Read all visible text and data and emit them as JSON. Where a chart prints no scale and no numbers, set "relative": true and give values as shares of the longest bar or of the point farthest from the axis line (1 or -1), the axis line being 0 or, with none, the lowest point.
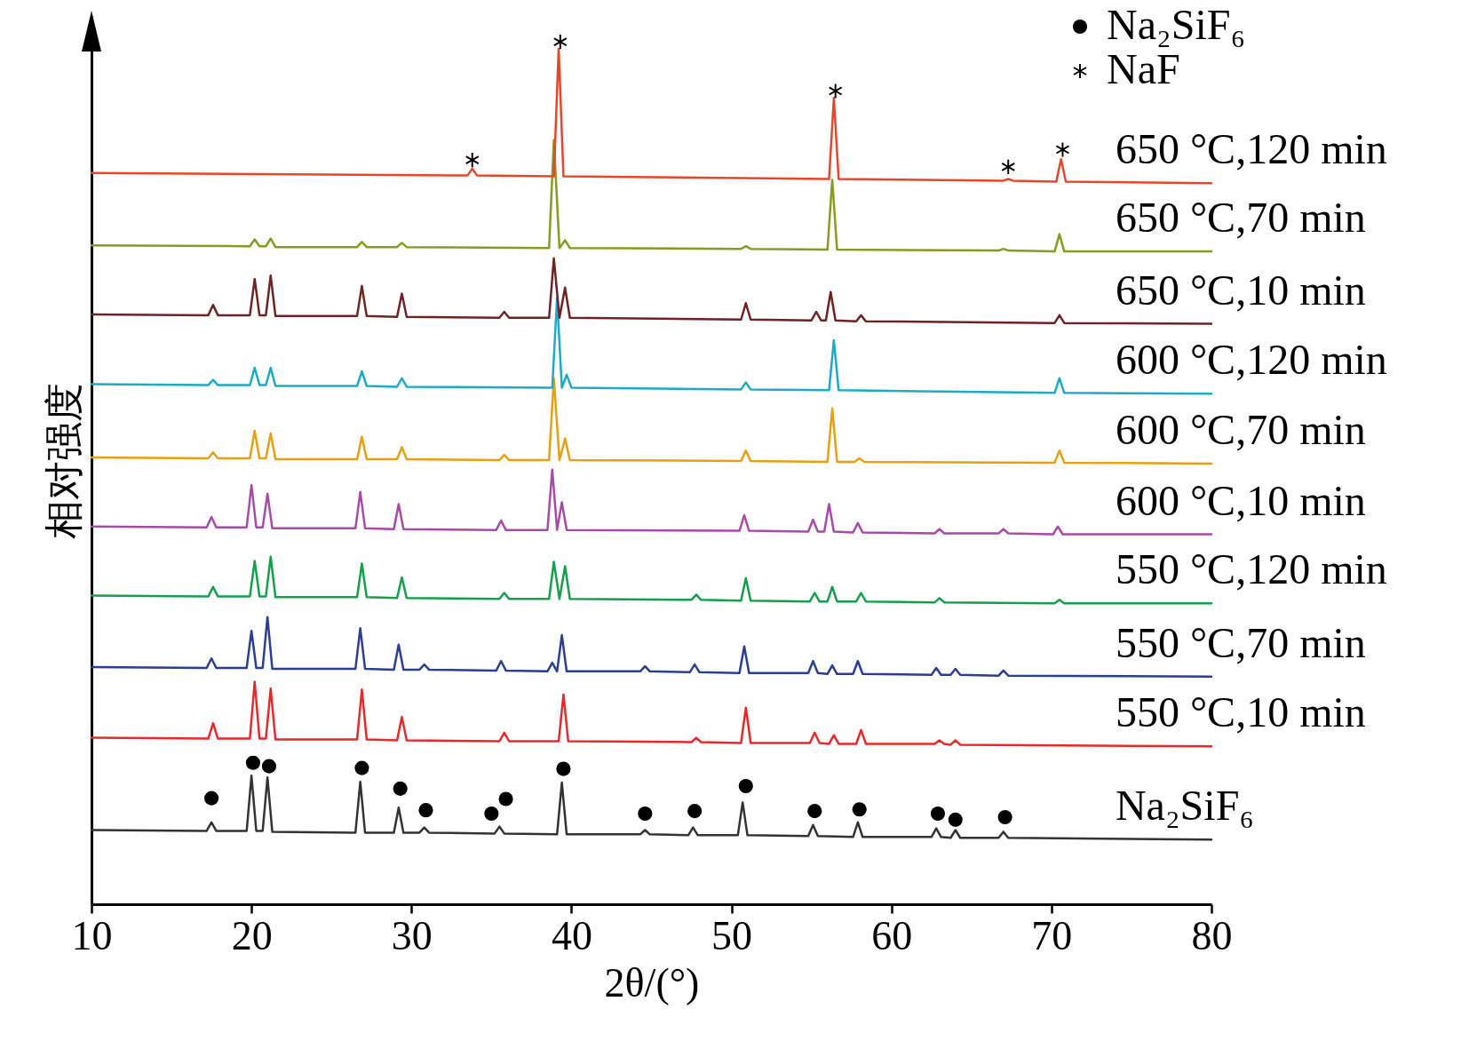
{
  "chart_data": {
    "type": "line",
    "relative": true,
    "xlabel": "2θ/(°)",
    "ylabel": "相对强度",
    "xlim": [
      10,
      80
    ],
    "xticks": [
      10,
      20,
      30,
      40,
      50,
      60,
      70,
      80
    ],
    "grid": false,
    "legend": "top right",
    "series": [
      {
        "name": "Na₂SiF₆",
        "color": "#333333",
        "x": [
          10,
          17.2,
          17.5,
          17.8,
          19.7,
          20.0,
          20.3,
          20.7,
          21.0,
          21.3,
          26.5,
          26.8,
          27.1,
          28.9,
          29.2,
          29.5,
          30.5,
          30.8,
          31.1,
          35.2,
          35.5,
          35.8,
          39.1,
          39.4,
          39.7,
          44.3,
          44.6,
          44.9,
          47.3,
          47.6,
          47.9,
          50.4,
          50.7,
          51.0,
          54.8,
          55.1,
          55.4,
          57.6,
          57.9,
          58.2,
          62.5,
          62.8,
          63.1,
          63.7,
          64.0,
          64.3,
          66.7,
          67.0,
          67.3,
          80
        ],
        "values": [
          0.086,
          0.085,
          0.095,
          0.085,
          0.085,
          0.149,
          0.085,
          0.085,
          0.147,
          0.084,
          0.083,
          0.142,
          0.083,
          0.083,
          0.112,
          0.083,
          0.083,
          0.089,
          0.083,
          0.082,
          0.09,
          0.082,
          0.081,
          0.141,
          0.081,
          0.081,
          0.086,
          0.081,
          0.08,
          0.089,
          0.08,
          0.08,
          0.118,
          0.08,
          0.079,
          0.092,
          0.079,
          0.078,
          0.095,
          0.078,
          0.078,
          0.088,
          0.078,
          0.077,
          0.086,
          0.077,
          0.077,
          0.084,
          0.077,
          0.075
        ]
      },
      {
        "name": "550 °C,10 min",
        "color": "#e8282a",
        "x": [
          10,
          17.3,
          17.6,
          17.9,
          19.9,
          20.2,
          20.5,
          20.9,
          21.2,
          21.5,
          26.6,
          26.9,
          27.2,
          29.1,
          29.4,
          29.7,
          35.5,
          35.8,
          36.1,
          39.2,
          39.5,
          39.8,
          47.5,
          47.8,
          48.1,
          50.6,
          50.9,
          51.2,
          54.9,
          55.2,
          55.5,
          56.1,
          56.4,
          56.7,
          57.8,
          58.1,
          58.4,
          62.7,
          63.0,
          63.3,
          63.7,
          64.0,
          64.3,
          80
        ],
        "values": [
          0.193,
          0.192,
          0.21,
          0.192,
          0.192,
          0.258,
          0.192,
          0.192,
          0.25,
          0.191,
          0.191,
          0.249,
          0.191,
          0.19,
          0.217,
          0.19,
          0.189,
          0.199,
          0.189,
          0.189,
          0.243,
          0.189,
          0.188,
          0.193,
          0.188,
          0.187,
          0.228,
          0.187,
          0.187,
          0.199,
          0.187,
          0.186,
          0.196,
          0.186,
          0.186,
          0.202,
          0.186,
          0.186,
          0.19,
          0.186,
          0.185,
          0.19,
          0.185,
          0.183
        ]
      },
      {
        "name": "550 °C,70 min",
        "color": "#2a3f94",
        "x": [
          10,
          17.2,
          17.5,
          17.8,
          19.7,
          20.0,
          20.3,
          20.7,
          21.0,
          21.3,
          26.5,
          26.8,
          27.1,
          28.9,
          29.2,
          29.5,
          30.5,
          30.8,
          31.1,
          35.3,
          35.6,
          35.9,
          38.5,
          38.8,
          39.1,
          39.4,
          39.7,
          44.3,
          44.6,
          44.9,
          47.4,
          47.7,
          48.0,
          50.5,
          50.8,
          51.1,
          54.8,
          55.1,
          55.4,
          56.0,
          56.3,
          56.6,
          57.6,
          57.9,
          58.2,
          62.5,
          62.8,
          63.1,
          63.7,
          64.0,
          64.3,
          66.7,
          67.0,
          67.3,
          80
        ],
        "values": [
          0.275,
          0.274,
          0.285,
          0.274,
          0.274,
          0.317,
          0.274,
          0.274,
          0.333,
          0.273,
          0.273,
          0.32,
          0.273,
          0.272,
          0.301,
          0.272,
          0.272,
          0.278,
          0.272,
          0.271,
          0.282,
          0.271,
          0.27,
          0.28,
          0.27,
          0.312,
          0.27,
          0.27,
          0.276,
          0.27,
          0.269,
          0.278,
          0.269,
          0.268,
          0.299,
          0.268,
          0.268,
          0.282,
          0.268,
          0.267,
          0.277,
          0.267,
          0.267,
          0.282,
          0.267,
          0.266,
          0.274,
          0.266,
          0.266,
          0.273,
          0.266,
          0.265,
          0.271,
          0.265,
          0.264
        ]
      },
      {
        "name": "550 °C,120 min",
        "color": "#14a04a",
        "x": [
          10,
          17.3,
          17.6,
          17.9,
          19.9,
          20.2,
          20.5,
          20.9,
          21.2,
          21.5,
          26.6,
          26.9,
          27.2,
          29.1,
          29.4,
          29.7,
          35.5,
          35.8,
          36.1,
          38.6,
          38.9,
          39.25,
          39.6,
          39.9,
          47.5,
          47.8,
          48.1,
          50.6,
          50.9,
          51.2,
          54.9,
          55.2,
          55.5,
          56.0,
          56.3,
          56.6,
          57.8,
          58.1,
          58.4,
          62.7,
          63.0,
          63.3,
          70.2,
          70.5,
          70.8,
          80
        ],
        "values": [
          0.358,
          0.357,
          0.368,
          0.357,
          0.357,
          0.398,
          0.357,
          0.357,
          0.403,
          0.356,
          0.356,
          0.395,
          0.356,
          0.355,
          0.379,
          0.355,
          0.354,
          0.361,
          0.354,
          0.354,
          0.397,
          0.354,
          0.392,
          0.354,
          0.353,
          0.359,
          0.353,
          0.352,
          0.378,
          0.352,
          0.351,
          0.361,
          0.351,
          0.351,
          0.368,
          0.351,
          0.351,
          0.361,
          0.351,
          0.35,
          0.355,
          0.35,
          0.349,
          0.353,
          0.349,
          0.349
        ]
      },
      {
        "name": "600 °C,10 min",
        "color": "#a84aa8",
        "x": [
          10,
          17.2,
          17.5,
          17.8,
          19.7,
          20.0,
          20.3,
          20.7,
          21.0,
          21.3,
          26.5,
          26.8,
          27.1,
          28.9,
          29.2,
          29.5,
          35.3,
          35.6,
          35.9,
          38.5,
          38.8,
          39.1,
          39.4,
          39.7,
          50.5,
          50.8,
          51.1,
          54.8,
          55.1,
          55.4,
          55.8,
          56.1,
          56.4,
          57.6,
          57.9,
          58.2,
          62.7,
          63.0,
          63.3,
          66.7,
          67.0,
          67.3,
          70.1,
          70.4,
          70.7,
          80
        ],
        "values": [
          0.438,
          0.437,
          0.449,
          0.437,
          0.437,
          0.486,
          0.437,
          0.437,
          0.476,
          0.436,
          0.436,
          0.478,
          0.436,
          0.435,
          0.464,
          0.435,
          0.434,
          0.445,
          0.434,
          0.434,
          0.504,
          0.434,
          0.466,
          0.434,
          0.433,
          0.451,
          0.433,
          0.432,
          0.446,
          0.432,
          0.432,
          0.464,
          0.432,
          0.431,
          0.442,
          0.431,
          0.43,
          0.435,
          0.43,
          0.43,
          0.435,
          0.43,
          0.429,
          0.438,
          0.429,
          0.429
        ]
      },
      {
        "name": "600 °C,70 min",
        "color": "#e6a010",
        "x": [
          10,
          17.3,
          17.6,
          17.9,
          19.9,
          20.2,
          20.5,
          20.9,
          21.2,
          21.5,
          26.6,
          26.9,
          27.2,
          29.1,
          29.4,
          29.7,
          35.5,
          35.8,
          36.1,
          38.6,
          38.9,
          39.25,
          39.6,
          39.9,
          50.6,
          50.9,
          51.2,
          56.0,
          56.3,
          56.6,
          57.7,
          58.0,
          58.3,
          70.2,
          70.5,
          70.8,
          80
        ],
        "values": [
          0.518,
          0.517,
          0.524,
          0.517,
          0.517,
          0.549,
          0.517,
          0.517,
          0.546,
          0.516,
          0.516,
          0.542,
          0.516,
          0.516,
          0.53,
          0.516,
          0.515,
          0.521,
          0.515,
          0.515,
          0.61,
          0.515,
          0.54,
          0.515,
          0.514,
          0.526,
          0.514,
          0.513,
          0.575,
          0.513,
          0.513,
          0.517,
          0.513,
          0.512,
          0.526,
          0.512,
          0.511
        ]
      },
      {
        "name": "600 °C,120 min",
        "color": "#1aacc4",
        "x": [
          10,
          17.3,
          17.6,
          17.9,
          19.9,
          20.2,
          20.5,
          20.9,
          21.2,
          21.5,
          26.6,
          26.9,
          27.2,
          29.1,
          29.4,
          29.7,
          38.8,
          39.1,
          39.4,
          39.7,
          40.0,
          50.6,
          50.9,
          51.2,
          56.1,
          56.4,
          56.7,
          70.2,
          70.5,
          70.8,
          80
        ],
        "values": [
          0.603,
          0.602,
          0.608,
          0.602,
          0.602,
          0.622,
          0.602,
          0.602,
          0.622,
          0.601,
          0.601,
          0.618,
          0.601,
          0.6,
          0.61,
          0.6,
          0.599,
          0.703,
          0.599,
          0.614,
          0.599,
          0.597,
          0.605,
          0.597,
          0.596,
          0.654,
          0.596,
          0.593,
          0.61,
          0.593,
          0.592
        ]
      },
      {
        "name": "650 °C,10 min",
        "color": "#6e2424",
        "x": [
          10,
          17.3,
          17.6,
          17.9,
          19.9,
          20.2,
          20.5,
          20.9,
          21.2,
          21.5,
          26.6,
          26.9,
          27.2,
          29.1,
          29.4,
          29.7,
          35.5,
          35.8,
          36.1,
          38.6,
          38.9,
          39.25,
          39.6,
          39.9,
          50.6,
          50.9,
          51.2,
          55.0,
          55.3,
          55.6,
          55.9,
          56.2,
          56.5,
          57.8,
          58.1,
          58.4,
          70.2,
          70.5,
          70.8,
          80
        ],
        "values": [
          0.684,
          0.683,
          0.695,
          0.683,
          0.683,
          0.725,
          0.683,
          0.683,
          0.729,
          0.682,
          0.682,
          0.717,
          0.682,
          0.681,
          0.708,
          0.681,
          0.68,
          0.687,
          0.68,
          0.68,
          0.749,
          0.68,
          0.715,
          0.68,
          0.678,
          0.697,
          0.678,
          0.677,
          0.687,
          0.677,
          0.677,
          0.71,
          0.677,
          0.676,
          0.683,
          0.676,
          0.674,
          0.683,
          0.674,
          0.673
        ]
      },
      {
        "name": "650 °C,70 min",
        "color": "#8a9a20",
        "x": [
          10,
          19.9,
          20.2,
          20.5,
          20.9,
          21.2,
          21.5,
          26.6,
          26.9,
          27.2,
          29.1,
          29.4,
          29.7,
          38.6,
          38.9,
          39.25,
          39.6,
          39.9,
          50.6,
          50.9,
          51.2,
          56.0,
          56.3,
          56.6,
          66.7,
          67.0,
          67.3,
          70.2,
          70.5,
          70.8,
          80
        ],
        "values": [
          0.764,
          0.763,
          0.771,
          0.763,
          0.763,
          0.772,
          0.762,
          0.762,
          0.768,
          0.762,
          0.762,
          0.767,
          0.762,
          0.761,
          0.886,
          0.761,
          0.77,
          0.761,
          0.76,
          0.763,
          0.76,
          0.759,
          0.84,
          0.759,
          0.758,
          0.76,
          0.758,
          0.757,
          0.777,
          0.757,
          0.757
        ]
      },
      {
        "name": "650 °C,120 min",
        "color": "#e8452a",
        "x": [
          10,
          33.5,
          33.8,
          34.1,
          38.9,
          39.2,
          39.5,
          56.1,
          56.4,
          56.7,
          67.0,
          67.3,
          67.6,
          70.3,
          70.6,
          70.9,
          80
        ],
        "values": [
          0.848,
          0.845,
          0.853,
          0.845,
          0.844,
          0.992,
          0.844,
          0.841,
          0.935,
          0.841,
          0.839,
          0.841,
          0.839,
          0.838,
          0.864,
          0.838,
          0.836
        ]
      },
      {
        "name": "Na₂SiF₆",
        "type": "scatter",
        "marker": "circle",
        "color": "#000000",
        "x": [
          17.5,
          20.1,
          21.1,
          26.9,
          29.3,
          30.9,
          35.0,
          35.9,
          39.5,
          44.6,
          47.7,
          50.9,
          55.2,
          58.0,
          62.9,
          64.0,
          67.1
        ],
        "values": [
          0.123,
          0.164,
          0.16,
          0.158,
          0.134,
          0.109,
          0.105,
          0.122,
          0.157,
          0.105,
          0.108,
          0.137,
          0.108,
          0.11,
          0.105,
          0.098,
          0.101
        ]
      },
      {
        "name": "NaF",
        "type": "scatter",
        "marker": "cross",
        "color": "#000000",
        "x": [
          33.8,
          39.3,
          56.5,
          67.3,
          70.7
        ],
        "values": [
          0.863,
          1.0,
          0.943,
          0.855,
          0.875
        ]
      }
    ]
  }
}
